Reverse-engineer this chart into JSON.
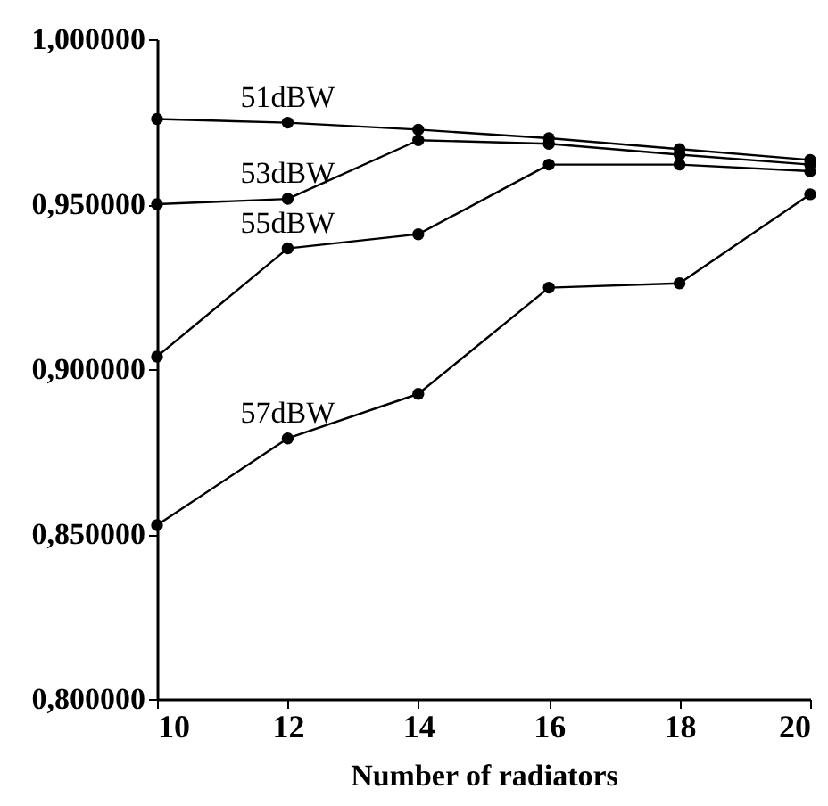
{
  "chart_data": {
    "type": "line",
    "xlabel": "Number of radiators",
    "x": [
      10,
      12,
      14,
      16,
      18,
      20
    ],
    "series": [
      {
        "name": "51dBW",
        "color": "#000000",
        "values": [
          0.9758,
          0.9747,
          0.9726,
          0.97,
          0.9667,
          0.9634
        ]
      },
      {
        "name": "53dBW",
        "color": "#000000",
        "values": [
          0.95,
          0.9516,
          0.9694,
          0.9683,
          0.965,
          0.962
        ]
      },
      {
        "name": "55dBW",
        "color": "#000000",
        "values": [
          0.9038,
          0.9366,
          0.9409,
          0.962,
          0.962,
          0.96
        ]
      },
      {
        "name": "57dBW",
        "color": "#000000",
        "values": [
          0.8527,
          0.879,
          0.8925,
          0.9247,
          0.926,
          0.953
        ]
      }
    ],
    "xlim": [
      10,
      20
    ],
    "xticks": [
      10,
      12,
      14,
      16,
      18,
      20
    ],
    "ylim": [
      0.8,
      1.0
    ],
    "yticks": [
      {
        "value": 0.8,
        "label": "0,800000"
      },
      {
        "value": 0.85,
        "label": "0,850000"
      },
      {
        "value": 0.9,
        "label": "0,900000"
      },
      {
        "value": 0.95,
        "label": "0,950000"
      },
      {
        "value": 1.0,
        "label": "1,000000"
      }
    ],
    "grid": false,
    "legend": false,
    "marker": "circle",
    "line_style": "solid"
  }
}
